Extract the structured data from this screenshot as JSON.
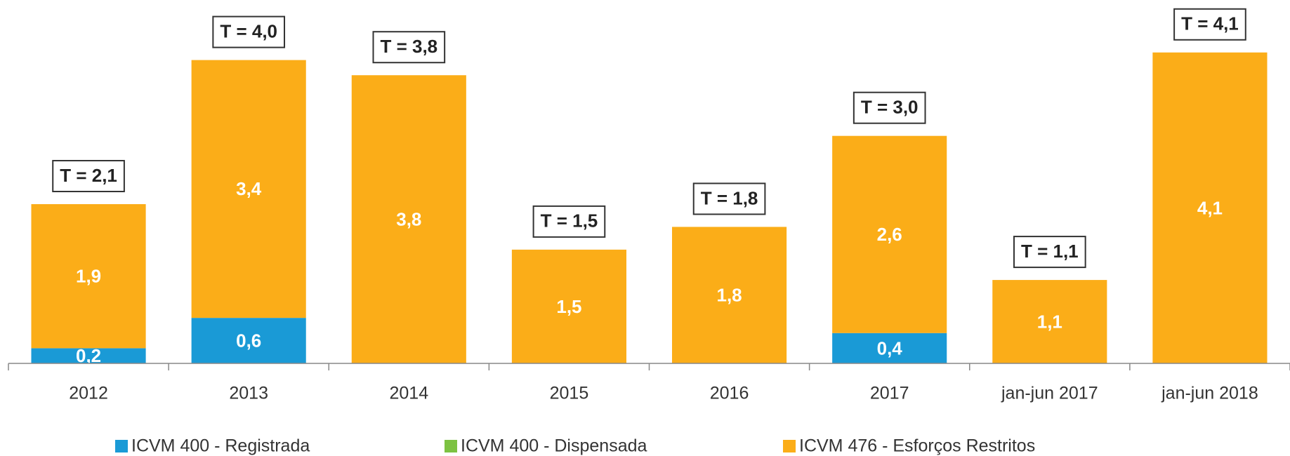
{
  "chart_data": {
    "type": "stacked_bar",
    "categories": [
      "2012",
      "2013",
      "2014",
      "2015",
      "2016",
      "2017",
      "jan-jun 2017",
      "jan-jun 2018"
    ],
    "series": [
      {
        "name": "ICVM 400 - Registrada",
        "color": "#1a9ad6",
        "values": [
          0.2,
          0.6,
          null,
          null,
          null,
          0.4,
          null,
          null
        ],
        "value_labels": [
          "0,2",
          "0,6",
          null,
          null,
          null,
          "0,4",
          null,
          null
        ]
      },
      {
        "name": "ICVM 400 - Dispensada",
        "color": "#7dc242",
        "values": [
          null,
          null,
          null,
          null,
          null,
          null,
          null,
          null
        ],
        "value_labels": [
          null,
          null,
          null,
          null,
          null,
          null,
          null,
          null
        ]
      },
      {
        "name": "ICVM 476 - Esforços Restritos",
        "color": "#fbad18",
        "values": [
          1.9,
          3.4,
          3.8,
          1.5,
          1.8,
          2.6,
          1.1,
          4.1
        ],
        "value_labels": [
          "1,9",
          "3,4",
          "3,8",
          "1,5",
          "1,8",
          "2,6",
          "1,1",
          "4,1"
        ]
      }
    ],
    "totals": [
      2.1,
      4.0,
      3.8,
      1.5,
      1.8,
      3.0,
      1.1,
      4.1
    ],
    "total_labels": [
      "T = 2,1",
      "T = 4,0",
      "T = 3,8",
      "T = 1,5",
      "T = 1,8",
      "T = 3,0",
      "T = 1,1",
      "T = 4,1"
    ],
    "legend": "bottom"
  }
}
